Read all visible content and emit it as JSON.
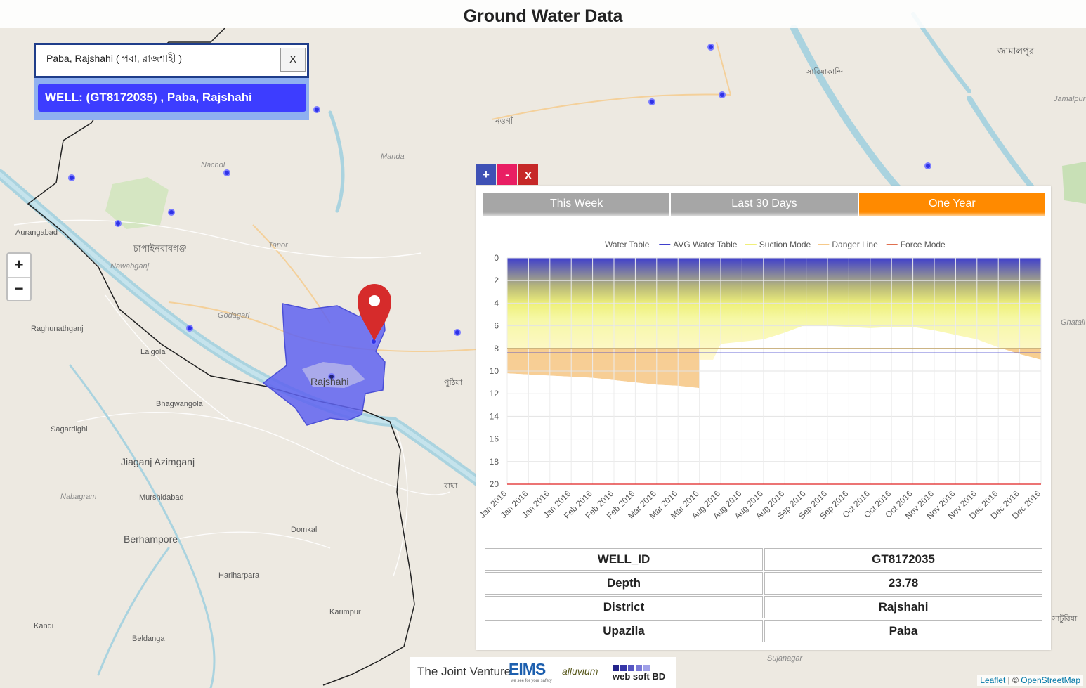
{
  "header": {
    "title": "Ground Water Data"
  },
  "search": {
    "value": "Paba, Rajshahi ( পবা, রাজশাহী )",
    "clear_label": "X",
    "result": "WELL: (GT8172035) , Paba, Rajshahi"
  },
  "zoom": {
    "in_label": "+",
    "out_label": "−"
  },
  "panel_controls": {
    "plus": "+",
    "minus": "-",
    "close": "x",
    "plus_color": "#3f51b5",
    "minus_color": "#e91e63",
    "close_color": "#c62828"
  },
  "tabs": [
    {
      "label": "This Week",
      "active": false
    },
    {
      "label": "Last 30 Days",
      "active": false
    },
    {
      "label": "One Year",
      "active": true
    }
  ],
  "chart_data": {
    "type": "line",
    "title": "",
    "legend": [
      {
        "name": "Water Table",
        "color": "#ffffff"
      },
      {
        "name": "AVG Water Table",
        "color": "#3f3fcc"
      },
      {
        "name": "Suction Mode",
        "color": "#f1ef7a"
      },
      {
        "name": "Danger Line",
        "color": "#f6c98a"
      },
      {
        "name": "Force Mode",
        "color": "#e07050"
      }
    ],
    "y_axis": {
      "min": 0,
      "max": 20,
      "reversed": true,
      "ticks": [
        0,
        2,
        4,
        6,
        8,
        10,
        12,
        14,
        16,
        18,
        20
      ]
    },
    "x_labels": [
      "Jan 2016",
      "Jan 2016",
      "Jan 2016",
      "Jan 2016",
      "Feb 2016",
      "Feb 2016",
      "Feb 2016",
      "Mar 2016",
      "Mar 2016",
      "Mar 2016",
      "Aug 2016",
      "Aug 2016",
      "Aug 2016",
      "Aug 2016",
      "Sep 2016",
      "Sep 2016",
      "Sep 2016",
      "Oct 2016",
      "Oct 2016",
      "Oct 2016",
      "Nov 2016",
      "Nov 2016",
      "Nov 2016",
      "Dec 2016",
      "Dec 2016",
      "Dec 2016"
    ],
    "series": [
      {
        "name": "Water Table",
        "values": [
          10.2,
          10.3,
          10.4,
          10.5,
          10.6,
          10.8,
          11.0,
          11.2,
          11.3,
          11.5,
          7.6,
          7.4,
          7.2,
          6.6,
          5.9,
          6.0,
          6.1,
          6.2,
          6.1,
          6.1,
          6.4,
          6.8,
          7.2,
          7.9,
          8.5,
          9.0
        ]
      },
      {
        "name": "AVG Water Table",
        "values": [
          8.4,
          8.4,
          8.4,
          8.4,
          8.4,
          8.4,
          8.4,
          8.4,
          8.4,
          8.4,
          8.4,
          8.4,
          8.4,
          8.4,
          8.4,
          8.4,
          8.4,
          8.4,
          8.4,
          8.4,
          8.4,
          8.4,
          8.4,
          8.4,
          8.4,
          8.4
        ]
      },
      {
        "name": "Danger Line",
        "values": [
          8.0,
          8.0,
          8.0,
          8.0,
          8.0,
          8.0,
          8.0,
          8.0,
          8.0,
          8.0,
          8.0,
          8.0,
          8.0,
          8.0,
          8.0,
          8.0,
          8.0,
          8.0,
          8.0,
          8.0,
          8.0,
          8.0,
          8.0,
          8.0,
          8.0,
          8.0
        ]
      },
      {
        "name": "Force Mode",
        "values": [
          20,
          20,
          20,
          20,
          20,
          20,
          20,
          20,
          20,
          20,
          20,
          20,
          20,
          20,
          20,
          20,
          20,
          20,
          20,
          20,
          20,
          20,
          20,
          20,
          20,
          20
        ]
      }
    ]
  },
  "info_table": [
    {
      "label": "WELL_ID",
      "value": "GT8172035"
    },
    {
      "label": "Depth",
      "value": "23.78"
    },
    {
      "label": "District",
      "value": "Rajshahi"
    },
    {
      "label": "Upazila",
      "value": "Paba"
    }
  ],
  "map": {
    "places": [
      {
        "name": "Rajshahi"
      },
      {
        "name": "চাপাইনবাবগঞ্জ"
      },
      {
        "name": "Aurangabad"
      },
      {
        "name": "Raghunathganj"
      },
      {
        "name": "Lalgola"
      },
      {
        "name": "Bhagwangola"
      },
      {
        "name": "Sagardighi"
      },
      {
        "name": "Jiaganj Azimganj"
      },
      {
        "name": "Murshidabad"
      },
      {
        "name": "Berhampore"
      },
      {
        "name": "Hariharpara"
      },
      {
        "name": "Domkal"
      },
      {
        "name": "Karimpur"
      },
      {
        "name": "Kandi"
      },
      {
        "name": "Beldanga"
      },
      {
        "name": "Nawabganj"
      },
      {
        "name": "Godagari"
      },
      {
        "name": "Tanor"
      },
      {
        "name": "Nachol"
      },
      {
        "name": "Manda"
      },
      {
        "name": "নওগাঁ"
      },
      {
        "name": "জামালপুর"
      },
      {
        "name": "পুঠিয়া"
      },
      {
        "name": "বাঘা"
      },
      {
        "name": "সারিয়াকান্দি"
      },
      {
        "name": "Jamalpur"
      },
      {
        "name": "Nabagram"
      },
      {
        "name": "Sujanagar"
      },
      {
        "name": "Ghatail"
      },
      {
        "name": "সাটুরিয়া"
      }
    ]
  },
  "footer": {
    "joint_venture": "The Joint Venture",
    "logo1": "EIMS",
    "logo1_tagline": "we see for your safety",
    "logo2": "alluvium",
    "logo3": "web soft BD"
  },
  "attribution": {
    "leaflet": "Leaflet",
    "separator": " | © ",
    "osm": "OpenStreetMap"
  }
}
